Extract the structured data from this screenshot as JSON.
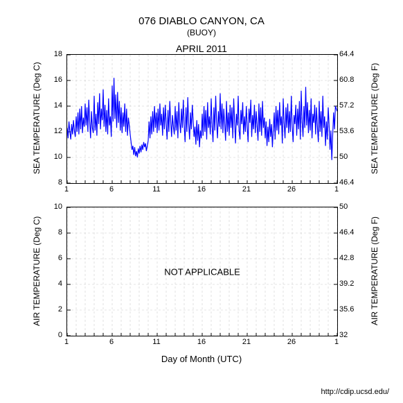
{
  "title": "076 DIABLO CANYON, CA",
  "subtitle": "(BUOY)",
  "month": "APRIL 2011",
  "xlabel": "Day of Month (UTC)",
  "footer": "http://cdip.ucsd.edu/",
  "xaxis": {
    "min": 1,
    "max": 31,
    "major_step": 5,
    "major_first": 1,
    "minor_step": 1,
    "tick_labels": [
      "1",
      "6",
      "11",
      "16",
      "21",
      "26",
      "1"
    ]
  },
  "sea_chart": {
    "type": "line",
    "y_left_label": "SEA TEMPERATURE (Deg C)",
    "y_right_label": "SEA TEMPERATURE (Deg F)",
    "y_left": {
      "min": 8,
      "max": 18,
      "step": 2,
      "ticks": [
        "8",
        "10",
        "12",
        "14",
        "16",
        "18"
      ]
    },
    "y_right": {
      "ticks": [
        "46.4",
        "50",
        "53.6",
        "57.2",
        "60.8",
        "64.4"
      ]
    },
    "line_color": "#0000ff",
    "line_width": 1.2,
    "grid_color": "#cccccc",
    "grid_dash": "3,3",
    "background": "#ffffff",
    "data": [
      [
        1.0,
        12.3
      ],
      [
        1.1,
        11.5
      ],
      [
        1.2,
        12.8
      ],
      [
        1.3,
        12.0
      ],
      [
        1.4,
        11.4
      ],
      [
        1.5,
        12.6
      ],
      [
        1.6,
        11.8
      ],
      [
        1.7,
        12.9
      ],
      [
        1.8,
        12.1
      ],
      [
        1.9,
        11.6
      ],
      [
        2.0,
        13.2
      ],
      [
        2.1,
        12.0
      ],
      [
        2.2,
        13.5
      ],
      [
        2.3,
        11.8
      ],
      [
        2.4,
        13.8
      ],
      [
        2.5,
        12.2
      ],
      [
        2.6,
        14.0
      ],
      [
        2.7,
        11.9
      ],
      [
        2.8,
        13.1
      ],
      [
        2.9,
        12.4
      ],
      [
        3.0,
        14.2
      ],
      [
        3.1,
        12.5
      ],
      [
        3.2,
        13.9
      ],
      [
        3.3,
        12.0
      ],
      [
        3.4,
        14.5
      ],
      [
        3.5,
        12.8
      ],
      [
        3.6,
        11.5
      ],
      [
        3.7,
        13.6
      ],
      [
        3.8,
        12.3
      ],
      [
        3.9,
        11.9
      ],
      [
        4.0,
        14.8
      ],
      [
        4.1,
        12.1
      ],
      [
        4.2,
        13.4
      ],
      [
        4.3,
        11.7
      ],
      [
        4.4,
        14.3
      ],
      [
        4.5,
        12.6
      ],
      [
        4.6,
        15.0
      ],
      [
        4.7,
        12.2
      ],
      [
        4.8,
        13.8
      ],
      [
        4.9,
        12.9
      ],
      [
        5.0,
        15.3
      ],
      [
        5.1,
        12.4
      ],
      [
        5.2,
        14.1
      ],
      [
        5.3,
        12.0
      ],
      [
        5.4,
        13.7
      ],
      [
        5.5,
        11.8
      ],
      [
        5.6,
        14.6
      ],
      [
        5.7,
        12.5
      ],
      [
        5.8,
        13.2
      ],
      [
        5.9,
        11.6
      ],
      [
        6.0,
        15.6
      ],
      [
        6.1,
        12.8
      ],
      [
        6.2,
        16.2
      ],
      [
        6.3,
        13.0
      ],
      [
        6.4,
        14.9
      ],
      [
        6.5,
        12.3
      ],
      [
        6.6,
        15.1
      ],
      [
        6.7,
        12.7
      ],
      [
        6.8,
        14.4
      ],
      [
        6.9,
        12.1
      ],
      [
        7.0,
        13.9
      ],
      [
        7.1,
        11.9
      ],
      [
        7.2,
        13.5
      ],
      [
        7.3,
        12.4
      ],
      [
        7.4,
        14.2
      ],
      [
        7.5,
        12.0
      ],
      [
        7.6,
        13.8
      ],
      [
        7.7,
        11.7
      ],
      [
        7.8,
        13.1
      ],
      [
        7.9,
        12.5
      ],
      [
        8.0,
        11.8
      ],
      [
        8.1,
        11.2
      ],
      [
        8.2,
        10.6
      ],
      [
        8.3,
        10.9
      ],
      [
        8.4,
        10.2
      ],
      [
        8.5,
        10.8
      ],
      [
        8.6,
        10.1
      ],
      [
        8.7,
        10.5
      ],
      [
        8.8,
        10.0
      ],
      [
        8.9,
        10.7
      ],
      [
        9.0,
        10.3
      ],
      [
        9.1,
        10.9
      ],
      [
        9.2,
        10.4
      ],
      [
        9.3,
        11.0
      ],
      [
        9.4,
        10.6
      ],
      [
        9.5,
        11.2
      ],
      [
        9.6,
        10.8
      ],
      [
        9.7,
        11.1
      ],
      [
        9.8,
        10.5
      ],
      [
        9.9,
        10.9
      ],
      [
        10.0,
        11.3
      ],
      [
        10.1,
        12.8
      ],
      [
        10.2,
        11.5
      ],
      [
        10.3,
        13.2
      ],
      [
        10.4,
        11.8
      ],
      [
        10.5,
        13.6
      ],
      [
        10.6,
        12.0
      ],
      [
        10.7,
        14.0
      ],
      [
        10.8,
        12.3
      ],
      [
        10.9,
        13.5
      ],
      [
        11.0,
        11.9
      ],
      [
        11.1,
        13.8
      ],
      [
        11.2,
        12.1
      ],
      [
        11.3,
        14.2
      ],
      [
        11.4,
        12.5
      ],
      [
        11.5,
        13.4
      ],
      [
        11.6,
        11.7
      ],
      [
        11.7,
        13.9
      ],
      [
        11.8,
        12.2
      ],
      [
        11.9,
        14.1
      ],
      [
        12.0,
        12.6
      ],
      [
        12.1,
        11.4
      ],
      [
        12.2,
        13.7
      ],
      [
        12.3,
        12.0
      ],
      [
        12.4,
        14.4
      ],
      [
        12.5,
        12.8
      ],
      [
        12.6,
        11.6
      ],
      [
        12.7,
        13.3
      ],
      [
        12.8,
        12.4
      ],
      [
        12.9,
        11.8
      ],
      [
        13.0,
        14.0
      ],
      [
        13.1,
        12.1
      ],
      [
        13.2,
        13.6
      ],
      [
        13.3,
        11.5
      ],
      [
        13.4,
        14.3
      ],
      [
        13.5,
        12.7
      ],
      [
        13.6,
        11.9
      ],
      [
        13.7,
        13.8
      ],
      [
        13.8,
        12.3
      ],
      [
        13.9,
        14.5
      ],
      [
        14.0,
        12.5
      ],
      [
        14.1,
        11.2
      ],
      [
        14.2,
        13.9
      ],
      [
        14.3,
        12.0
      ],
      [
        14.4,
        14.7
      ],
      [
        14.5,
        12.6
      ],
      [
        14.6,
        11.4
      ],
      [
        14.7,
        13.5
      ],
      [
        14.8,
        12.2
      ],
      [
        14.9,
        14.1
      ],
      [
        15.0,
        12.8
      ],
      [
        15.1,
        11.6
      ],
      [
        15.2,
        12.4
      ],
      [
        15.3,
        11.0
      ],
      [
        15.4,
        12.9
      ],
      [
        15.5,
        11.3
      ],
      [
        15.6,
        12.6
      ],
      [
        15.7,
        10.8
      ],
      [
        15.8,
        12.1
      ],
      [
        15.9,
        11.5
      ],
      [
        16.0,
        13.4
      ],
      [
        16.1,
        11.7
      ],
      [
        16.2,
        14.0
      ],
      [
        16.3,
        12.0
      ],
      [
        16.4,
        13.7
      ],
      [
        16.5,
        11.4
      ],
      [
        16.6,
        14.3
      ],
      [
        16.7,
        12.3
      ],
      [
        16.8,
        13.2
      ],
      [
        16.9,
        11.8
      ],
      [
        17.0,
        14.6
      ],
      [
        17.1,
        12.5
      ],
      [
        17.2,
        11.2
      ],
      [
        17.3,
        13.9
      ],
      [
        17.4,
        12.1
      ],
      [
        17.5,
        14.8
      ],
      [
        17.6,
        12.7
      ],
      [
        17.7,
        11.5
      ],
      [
        17.8,
        13.6
      ],
      [
        17.9,
        12.4
      ],
      [
        18.0,
        15.0
      ],
      [
        18.1,
        12.2
      ],
      [
        18.2,
        14.2
      ],
      [
        18.3,
        11.9
      ],
      [
        18.4,
        13.8
      ],
      [
        18.5,
        12.6
      ],
      [
        18.6,
        11.3
      ],
      [
        18.7,
        14.4
      ],
      [
        18.8,
        12.0
      ],
      [
        18.9,
        13.5
      ],
      [
        19.0,
        11.7
      ],
      [
        19.1,
        14.1
      ],
      [
        19.2,
        12.3
      ],
      [
        19.3,
        13.9
      ],
      [
        19.4,
        11.5
      ],
      [
        19.5,
        14.6
      ],
      [
        19.6,
        12.8
      ],
      [
        19.7,
        11.1
      ],
      [
        19.8,
        13.4
      ],
      [
        19.9,
        12.5
      ],
      [
        20.0,
        14.8
      ],
      [
        20.1,
        12.1
      ],
      [
        20.2,
        11.4
      ],
      [
        20.3,
        13.7
      ],
      [
        20.4,
        12.6
      ],
      [
        20.5,
        14.3
      ],
      [
        20.6,
        11.8
      ],
      [
        20.7,
        13.2
      ],
      [
        20.8,
        12.0
      ],
      [
        20.9,
        14.0
      ],
      [
        21.0,
        12.4
      ],
      [
        21.1,
        11.2
      ],
      [
        21.2,
        13.8
      ],
      [
        21.3,
        12.7
      ],
      [
        21.4,
        14.5
      ],
      [
        21.5,
        11.6
      ],
      [
        21.6,
        13.3
      ],
      [
        21.7,
        12.2
      ],
      [
        21.8,
        14.1
      ],
      [
        21.9,
        11.9
      ],
      [
        22.0,
        13.6
      ],
      [
        22.1,
        12.5
      ],
      [
        22.2,
        11.3
      ],
      [
        22.3,
        14.2
      ],
      [
        22.4,
        12.0
      ],
      [
        22.5,
        13.9
      ],
      [
        22.6,
        11.7
      ],
      [
        22.7,
        14.4
      ],
      [
        22.8,
        12.3
      ],
      [
        22.9,
        13.1
      ],
      [
        23.0,
        11.5
      ],
      [
        23.1,
        12.8
      ],
      [
        23.2,
        10.9
      ],
      [
        23.3,
        12.4
      ],
      [
        23.4,
        11.2
      ],
      [
        23.5,
        13.0
      ],
      [
        23.6,
        11.6
      ],
      [
        23.7,
        12.6
      ],
      [
        23.8,
        10.8
      ],
      [
        23.9,
        12.2
      ],
      [
        24.0,
        13.5
      ],
      [
        24.1,
        11.4
      ],
      [
        24.2,
        14.0
      ],
      [
        24.3,
        12.1
      ],
      [
        24.4,
        13.7
      ],
      [
        24.5,
        11.8
      ],
      [
        24.6,
        14.3
      ],
      [
        24.7,
        12.5
      ],
      [
        24.8,
        13.2
      ],
      [
        24.9,
        11.1
      ],
      [
        25.0,
        14.6
      ],
      [
        25.1,
        12.7
      ],
      [
        25.2,
        11.5
      ],
      [
        25.3,
        13.9
      ],
      [
        25.4,
        12.3
      ],
      [
        25.5,
        14.2
      ],
      [
        25.6,
        11.9
      ],
      [
        25.7,
        13.6
      ],
      [
        25.8,
        12.0
      ],
      [
        25.9,
        14.8
      ],
      [
        26.0,
        12.4
      ],
      [
        26.1,
        11.2
      ],
      [
        26.2,
        13.3
      ],
      [
        26.3,
        12.6
      ],
      [
        26.4,
        14.1
      ],
      [
        26.5,
        11.7
      ],
      [
        26.6,
        13.8
      ],
      [
        26.7,
        12.2
      ],
      [
        26.8,
        14.4
      ],
      [
        26.9,
        11.4
      ],
      [
        27.0,
        15.2
      ],
      [
        27.1,
        12.8
      ],
      [
        27.2,
        11.6
      ],
      [
        27.3,
        14.0
      ],
      [
        27.4,
        12.3
      ],
      [
        27.5,
        15.5
      ],
      [
        27.6,
        12.5
      ],
      [
        27.7,
        14.3
      ],
      [
        27.8,
        11.9
      ],
      [
        27.9,
        13.7
      ],
      [
        28.0,
        12.1
      ],
      [
        28.1,
        14.6
      ],
      [
        28.2,
        11.5
      ],
      [
        28.3,
        13.4
      ],
      [
        28.4,
        12.7
      ],
      [
        28.5,
        14.1
      ],
      [
        28.6,
        11.8
      ],
      [
        28.7,
        13.9
      ],
      [
        28.8,
        12.4
      ],
      [
        28.9,
        11.2
      ],
      [
        29.0,
        14.4
      ],
      [
        29.1,
        12.0
      ],
      [
        29.2,
        13.6
      ],
      [
        29.3,
        11.6
      ],
      [
        29.4,
        14.8
      ],
      [
        29.5,
        12.3
      ],
      [
        29.6,
        13.2
      ],
      [
        29.7,
        10.9
      ],
      [
        29.8,
        12.8
      ],
      [
        29.9,
        11.4
      ],
      [
        30.0,
        13.9
      ],
      [
        30.1,
        12.5
      ],
      [
        30.2,
        10.6
      ],
      [
        30.3,
        12.1
      ],
      [
        30.4,
        9.8
      ],
      [
        30.5,
        11.8
      ],
      [
        30.6,
        13.5
      ],
      [
        30.7,
        12.2
      ],
      [
        30.8,
        14.0
      ],
      [
        30.9,
        13.8
      ],
      [
        31.0,
        13.6
      ]
    ]
  },
  "air_chart": {
    "type": "line",
    "y_left_label": "AIR TEMPERATURE (Deg C)",
    "y_right_label": "AIR TEMPERATURE (Deg F)",
    "y_left": {
      "min": 0,
      "max": 10,
      "step": 2,
      "ticks": [
        "0",
        "2",
        "4",
        "6",
        "8",
        "10"
      ]
    },
    "y_right": {
      "ticks": [
        "32",
        "35.6",
        "39.2",
        "42.8",
        "46.4",
        "50"
      ]
    },
    "line_color": "#0000ff",
    "grid_color": "#cccccc",
    "grid_dash": "3,3",
    "background": "#ffffff",
    "not_applicable_text": "NOT APPLICABLE",
    "data": []
  }
}
